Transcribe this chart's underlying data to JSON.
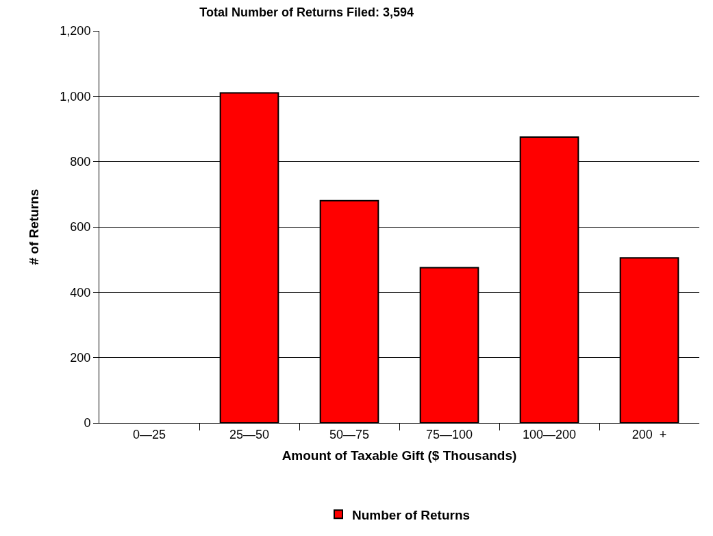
{
  "chart_data": {
    "type": "bar",
    "title": "Total Number of Returns Filed: 3,594",
    "xlabel": "Amount of Taxable Gift ($ Thousands)",
    "ylabel": "# of Returns",
    "categories": [
      "0—25",
      "25—50",
      "50—75",
      "75—100",
      "100—200",
      "200  +"
    ],
    "series": [
      {
        "name": "Number of Returns",
        "color": "#ff0000",
        "values": [
          null,
          1010,
          680,
          475,
          875,
          505
        ]
      }
    ],
    "ylim": [
      0,
      1200
    ],
    "yticks": [
      0,
      200,
      400,
      600,
      800,
      {
        "value": 1000,
        "label": "1,000"
      },
      {
        "value": 1200,
        "label": "1,200"
      }
    ],
    "grid": "y",
    "legend": "bottom"
  }
}
